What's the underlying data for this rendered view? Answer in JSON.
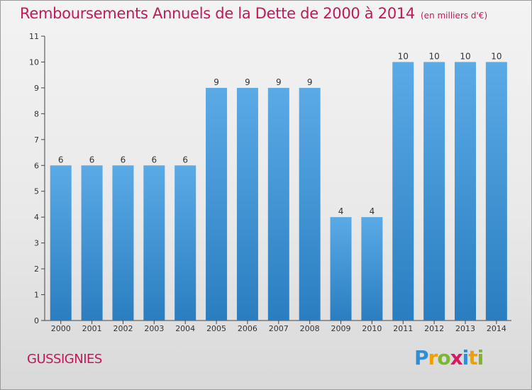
{
  "chart_data": {
    "type": "bar",
    "title": "Remboursements Annuels de la Dette de 2000 à 2014",
    "subtitle": "(en milliers d'€)",
    "categories": [
      "2000",
      "2001",
      "2002",
      "2003",
      "2004",
      "2005",
      "2006",
      "2007",
      "2008",
      "2009",
      "2010",
      "2011",
      "2012",
      "2013",
      "2014"
    ],
    "values": [
      6,
      6,
      6,
      6,
      6,
      9,
      9,
      9,
      9,
      4,
      4,
      10,
      10,
      10,
      10
    ],
    "ylim": [
      0,
      11
    ],
    "yticks": [
      0,
      1,
      2,
      3,
      4,
      5,
      6,
      7,
      8,
      9,
      10,
      11
    ],
    "grid": false,
    "colors": {
      "bar_top": "#5aaae6",
      "bar_bottom": "#2a7ec0",
      "text": "#c2185b"
    }
  },
  "location": "GUSSIGNIES",
  "logo": {
    "p": "P",
    "r": "r",
    "o": "o",
    "x": "x",
    "i": "i",
    "t": "t",
    "i2": "i"
  }
}
